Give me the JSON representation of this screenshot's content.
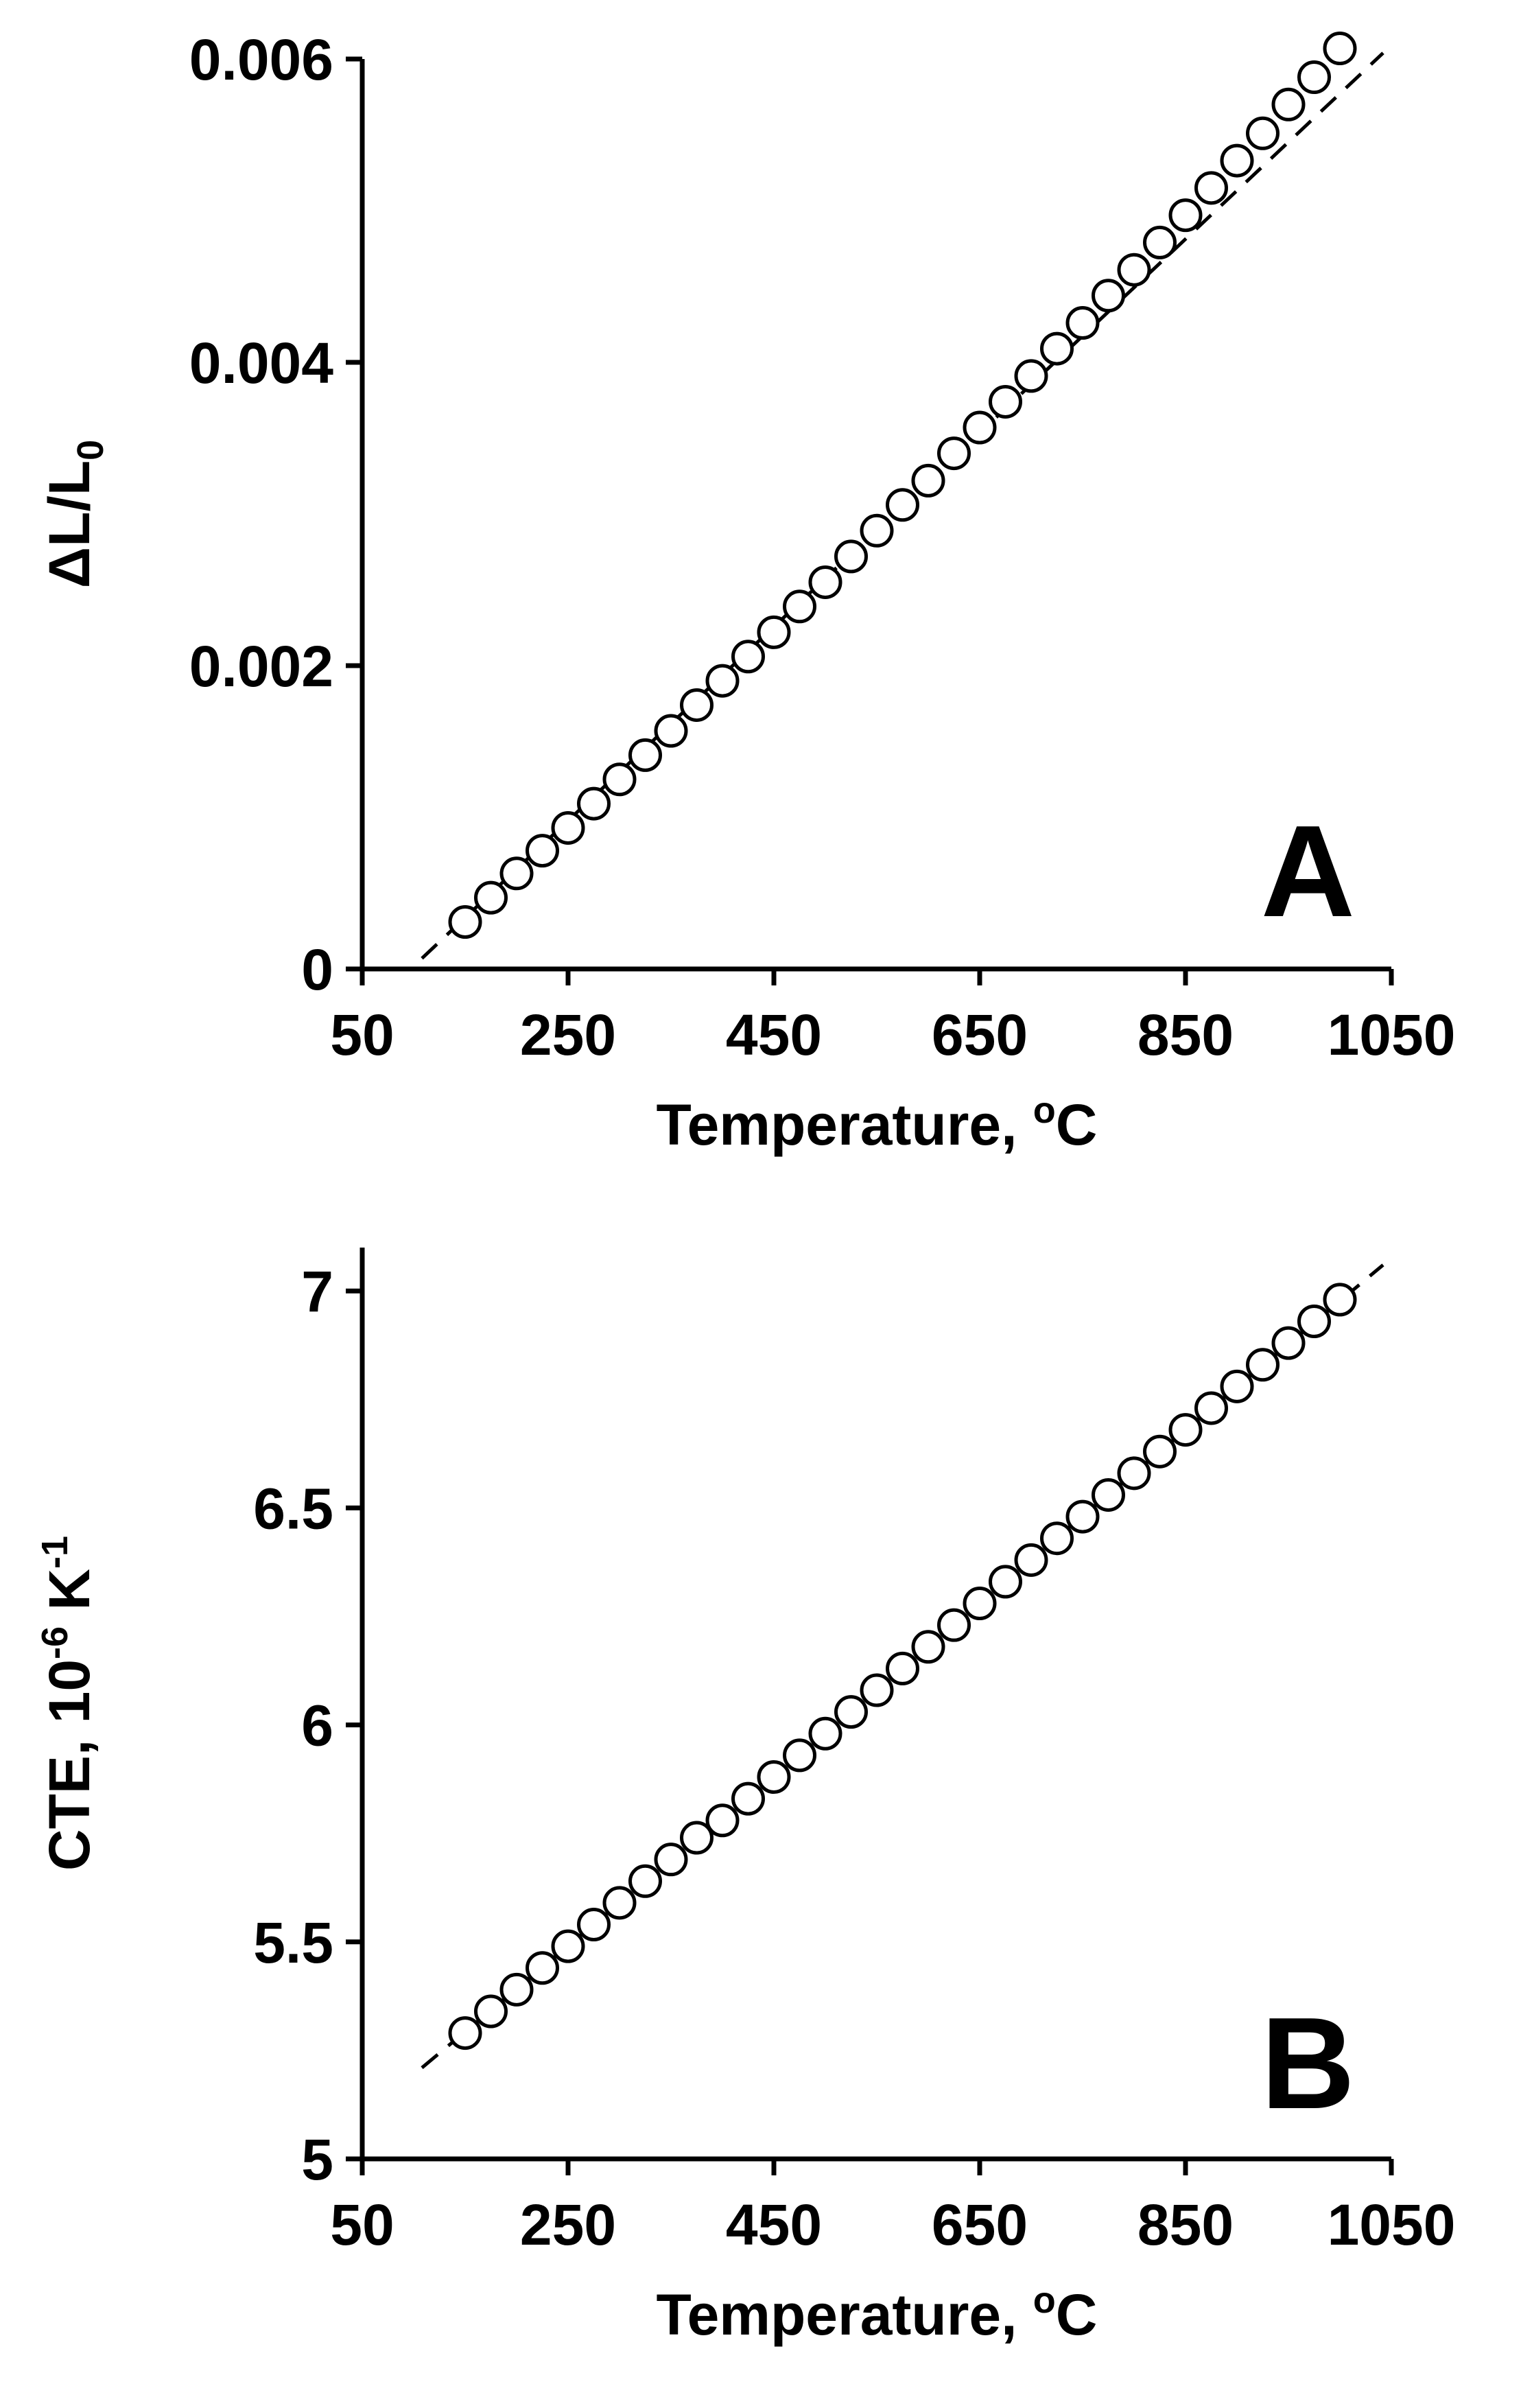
{
  "chart_data": [
    {
      "type": "scatter",
      "panel_label": "A",
      "xlabel": "Temperature, °C",
      "xlabel_main": "Temperature, ",
      "xlabel_sup": "o",
      "xlabel_end": "C",
      "ylabel_main": "ΔL/L",
      "ylabel_sub": "0",
      "xlim": [
        50,
        1050
      ],
      "ylim": [
        0,
        0.006
      ],
      "xticks": [
        50,
        250,
        450,
        650,
        850,
        1050
      ],
      "xtick_labels": [
        "50",
        "250",
        "450",
        "650",
        "850",
        "1050"
      ],
      "yticks": [
        0,
        0.002,
        0.004,
        0.006
      ],
      "ytick_labels": [
        "0",
        "0.002",
        "0.004",
        "0.006"
      ],
      "x": [
        150,
        175,
        200,
        225,
        250,
        275,
        300,
        325,
        350,
        375,
        400,
        425,
        450,
        475,
        500,
        525,
        550,
        575,
        600,
        625,
        650,
        675,
        700,
        725,
        750,
        775,
        800,
        825,
        850,
        875,
        900,
        925,
        950,
        975,
        1000
      ],
      "y": [
        0.00031,
        0.00047,
        0.00063,
        0.00078,
        0.00093,
        0.00109,
        0.00125,
        0.00141,
        0.00157,
        0.00174,
        0.0019,
        0.00206,
        0.00222,
        0.00239,
        0.00255,
        0.00272,
        0.00289,
        0.00306,
        0.00322,
        0.0034,
        0.00357,
        0.00374,
        0.00391,
        0.00409,
        0.00426,
        0.00444,
        0.00461,
        0.00479,
        0.00497,
        0.00515,
        0.00533,
        0.00551,
        0.0057,
        0.00588,
        0.00607
      ],
      "fit_line": {
        "style": "dashed",
        "x": [
          108,
          1042
        ],
        "y": [
          7e-05,
          0.00604
        ]
      },
      "marker": "open circle",
      "grid": false
    },
    {
      "type": "scatter",
      "panel_label": "B",
      "xlabel": "Temperature, °C",
      "xlabel_main": "Temperature, ",
      "xlabel_sup": "o",
      "xlabel_end": "C",
      "ylabel_main": "CTE, 10",
      "ylabel_sup1": "-6",
      "ylabel_mid": " K",
      "ylabel_sup2": "-1",
      "xlim": [
        50,
        1050
      ],
      "ylim": [
        5,
        7.1
      ],
      "xticks": [
        50,
        250,
        450,
        650,
        850,
        1050
      ],
      "xtick_labels": [
        "50",
        "250",
        "450",
        "650",
        "850",
        "1050"
      ],
      "yticks": [
        5,
        5.5,
        6,
        6.5,
        7
      ],
      "ytick_labels": [
        "5",
        "5.5",
        "6",
        "6.5",
        "7"
      ],
      "x": [
        150,
        175,
        200,
        225,
        250,
        275,
        300,
        325,
        350,
        375,
        400,
        425,
        450,
        475,
        500,
        525,
        550,
        575,
        600,
        625,
        650,
        675,
        700,
        725,
        750,
        775,
        800,
        825,
        850,
        875,
        900,
        925,
        950,
        975,
        1000
      ],
      "y": [
        5.29,
        5.34,
        5.39,
        5.44,
        5.49,
        5.54,
        5.59,
        5.64,
        5.69,
        5.74,
        5.78,
        5.83,
        5.88,
        5.93,
        5.98,
        6.03,
        6.08,
        6.13,
        6.18,
        6.23,
        6.28,
        6.33,
        6.38,
        6.43,
        6.48,
        6.53,
        6.58,
        6.63,
        6.68,
        6.73,
        6.78,
        6.83,
        6.88,
        6.93,
        6.98
      ],
      "fit_line": {
        "style": "dashed",
        "x": [
          108,
          1042
        ],
        "y": [
          5.21,
          7.06
        ]
      },
      "marker": "open circle",
      "grid": false
    }
  ]
}
